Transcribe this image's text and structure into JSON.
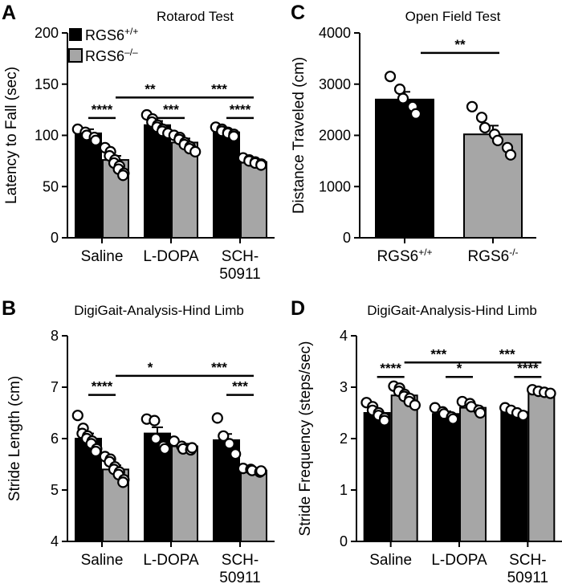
{
  "panel_letters": {
    "a": "A",
    "b": "B",
    "c": "C",
    "d": "D"
  },
  "legend": {
    "wt_base": "RGS6",
    "wt_sup": "+/+",
    "ko_base": "RGS6",
    "ko_sup": "–/–",
    "wt_color": "#000000",
    "ko_color": "#a6a6a6"
  },
  "chart_data": [
    {
      "panel": "A",
      "type": "bar",
      "title": "Rotarod Test",
      "ylabel": "Latency to Fall (sec)",
      "ylim": [
        0,
        200
      ],
      "yticks": [
        0,
        50,
        100,
        150,
        200
      ],
      "categories": [
        "Saline",
        "L-DOPA",
        "SCH-50911"
      ],
      "category_lines": [
        [
          "Saline"
        ],
        [
          "L-DOPA"
        ],
        [
          "SCH-",
          "50911"
        ]
      ],
      "series": [
        {
          "name": "RGS6+/+",
          "values": [
            102,
            110,
            103
          ],
          "sem": [
            4,
            4,
            3
          ],
          "points": [
            [
              106,
              103,
              100,
              98,
              95
            ],
            [
              120,
              116,
              113,
              110,
              108,
              106,
              104,
              102
            ],
            [
              108,
              106,
              104,
              103,
              102,
              101,
              99
            ]
          ]
        },
        {
          "name": "RGS6–/–",
          "values": [
            76,
            93,
            74
          ],
          "sem": [
            4,
            4,
            2
          ],
          "points": [
            [
              88,
              84,
              80,
              76,
              73,
              70,
              67,
              63,
              61
            ],
            [
              100,
              98,
              96,
              93,
              91,
              89,
              87,
              84
            ],
            [
              78,
              76,
              75,
              74,
              73,
              72,
              71
            ]
          ]
        }
      ],
      "significance": [
        {
          "from": [
            0,
            0
          ],
          "to": [
            0,
            1
          ],
          "label": "****"
        },
        {
          "from": [
            1,
            0
          ],
          "to": [
            1,
            1
          ],
          "label": "***"
        },
        {
          "from": [
            2,
            0
          ],
          "to": [
            2,
            1
          ],
          "label": "****"
        },
        {
          "from": [
            0,
            1
          ],
          "to": [
            1,
            1
          ],
          "label": "**"
        },
        {
          "from": [
            1,
            1
          ],
          "to": [
            2,
            1
          ],
          "label": "***"
        }
      ]
    },
    {
      "panel": "C",
      "type": "bar",
      "title": "Open Field Test",
      "ylabel": "Distance Traveled (cm)",
      "ylim": [
        0,
        4000
      ],
      "yticks": [
        0,
        1000,
        2000,
        3000,
        4000
      ],
      "categories": [
        "RGS6+/+",
        "RGS6-/-"
      ],
      "category_labels": [
        {
          "base": "RGS6",
          "sup": "+/+"
        },
        {
          "base": "RGS6",
          "sup": "-/-"
        }
      ],
      "values": [
        2700,
        2020
      ],
      "sem": [
        150,
        170
      ],
      "points": [
        [
          3150,
          2900,
          2720,
          2560,
          2420
        ],
        [
          2560,
          2350,
          2150,
          2020,
          1900,
          1760,
          1620
        ]
      ],
      "significance": [
        {
          "from": 0,
          "to": 1,
          "label": "**"
        }
      ]
    },
    {
      "panel": "B",
      "type": "bar",
      "title": "DigiGait-Analysis-Hind Limb",
      "ylabel": "Stride Length (cm)",
      "ylim": [
        4,
        8
      ],
      "yticks": [
        4,
        5,
        6,
        7,
        8
      ],
      "categories": [
        "Saline",
        "L-DOPA",
        "SCH-50911"
      ],
      "category_lines": [
        [
          "Saline"
        ],
        [
          "L-DOPA"
        ],
        [
          "SCH-",
          "50911"
        ]
      ],
      "series": [
        {
          "name": "RGS6+/+",
          "values": [
            6.0,
            6.1,
            5.97
          ],
          "sem": [
            0.1,
            0.12,
            0.12
          ],
          "points": [
            [
              6.45,
              6.2,
              6.1,
              6.05,
              6.0,
              5.95,
              5.9,
              5.8,
              5.75
            ],
            [
              6.38,
              6.35,
              6.0,
              5.85,
              5.8
            ],
            [
              6.4,
              6.05,
              5.9,
              5.7
            ]
          ]
        },
        {
          "name": "RGS6–/–",
          "values": [
            5.4,
            5.85,
            5.38
          ],
          "sem": [
            0.08,
            0.05,
            0.03
          ],
          "points": [
            [
              5.65,
              5.6,
              5.55,
              5.45,
              5.4,
              5.35,
              5.3,
              5.2,
              5.15
            ],
            [
              5.95,
              5.85,
              5.8,
              5.78,
              5.82
            ],
            [
              5.42,
              5.4,
              5.38,
              5.35,
              5.37
            ]
          ]
        }
      ],
      "significance": [
        {
          "from": [
            0,
            0
          ],
          "to": [
            0,
            1
          ],
          "label": "****"
        },
        {
          "from": [
            2,
            0
          ],
          "to": [
            2,
            1
          ],
          "label": "***"
        },
        {
          "from": [
            0,
            1
          ],
          "to": [
            1,
            1
          ],
          "label": "*"
        },
        {
          "from": [
            1,
            1
          ],
          "to": [
            2,
            1
          ],
          "label": "***"
        }
      ]
    },
    {
      "panel": "D",
      "type": "bar",
      "title": "DigiGait-Analysis-Hind Limb",
      "ylabel": "Stride Frequency (steps/sec)",
      "ylim": [
        0,
        4
      ],
      "yticks": [
        0,
        1,
        2,
        3,
        4
      ],
      "categories": [
        "Saline",
        "L-DOPA",
        "SCH-50911"
      ],
      "category_lines": [
        [
          "Saline"
        ],
        [
          "L-DOPA"
        ],
        [
          "SCH-",
          "50911"
        ]
      ],
      "series": [
        {
          "name": "RGS6+/+",
          "values": [
            2.5,
            2.48,
            2.52
          ],
          "sem": [
            0.05,
            0.05,
            0.05
          ],
          "points": [
            [
              2.7,
              2.62,
              2.55,
              2.5,
              2.45,
              2.4,
              2.35
            ],
            [
              2.6,
              2.52,
              2.48,
              2.42,
              2.38
            ],
            [
              2.6,
              2.55,
              2.5,
              2.45
            ]
          ]
        },
        {
          "name": "RGS6–/–",
          "values": [
            2.84,
            2.6,
            2.9
          ],
          "sem": [
            0.05,
            0.05,
            0.03
          ],
          "points": [
            [
              3.02,
              2.98,
              2.92,
              2.86,
              2.82,
              2.78,
              2.72,
              2.65
            ],
            [
              2.72,
              2.68,
              2.62,
              2.55,
              2.5
            ],
            [
              2.95,
              2.92,
              2.9,
              2.88
            ]
          ]
        }
      ],
      "significance": [
        {
          "from": [
            0,
            0
          ],
          "to": [
            0,
            1
          ],
          "label": "****"
        },
        {
          "from": [
            1,
            0
          ],
          "to": [
            1,
            1
          ],
          "label": "*"
        },
        {
          "from": [
            2,
            0
          ],
          "to": [
            2,
            1
          ],
          "label": "****"
        },
        {
          "from": [
            0,
            1
          ],
          "to": [
            1,
            1
          ],
          "label": "***"
        },
        {
          "from": [
            1,
            1
          ],
          "to": [
            2,
            1
          ],
          "label": "***"
        }
      ]
    }
  ]
}
